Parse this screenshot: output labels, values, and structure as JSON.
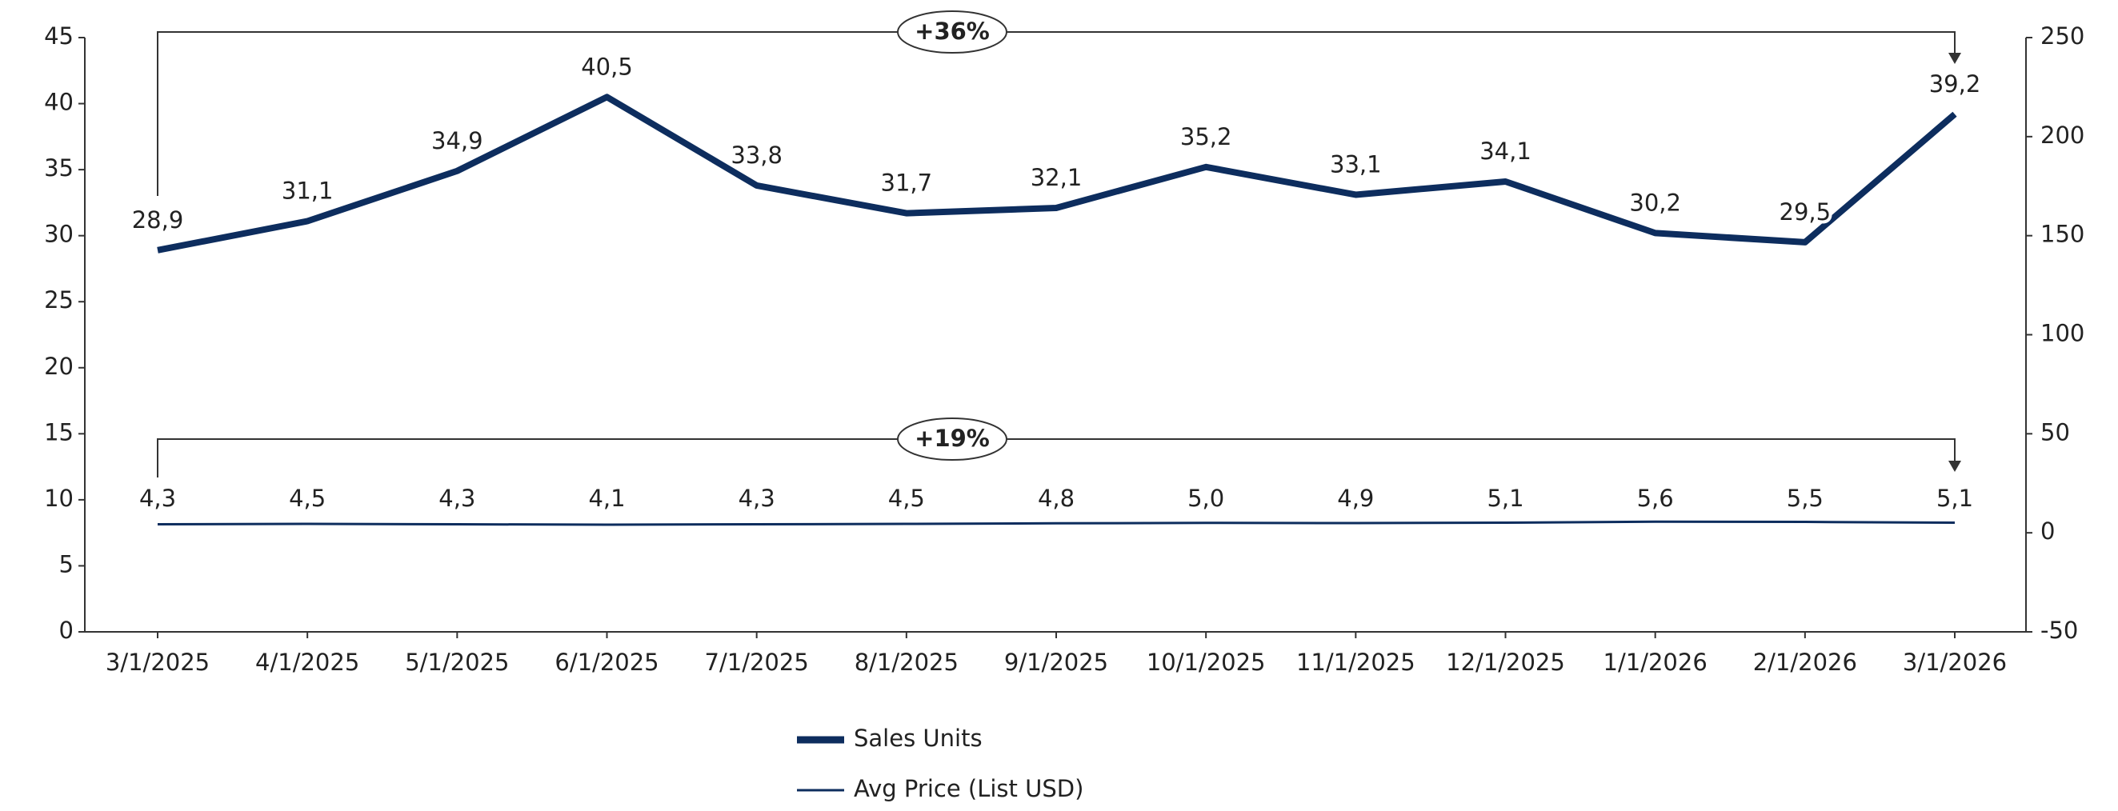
{
  "chart_data": {
    "type": "line",
    "categories": [
      "3/1/2025",
      "4/1/2025",
      "5/1/2025",
      "6/1/2025",
      "7/1/2025",
      "8/1/2025",
      "9/1/2025",
      "10/1/2025",
      "11/1/2025",
      "12/1/2025",
      "1/1/2026",
      "2/1/2026",
      "3/1/2026"
    ],
    "series": [
      {
        "name": "Sales Units",
        "color": "#0d2d5e",
        "label_color": "#222222",
        "values": [
          28.9,
          31.1,
          34.9,
          40.5,
          33.8,
          31.7,
          32.1,
          35.2,
          33.1,
          34.1,
          30.2,
          29.5,
          39.2
        ],
        "value_labels": [
          "28,9",
          "31,1",
          "34,9",
          "40,5",
          "33,8",
          "31,7",
          "32,1",
          "35,2",
          "33,1",
          "34,1",
          "30,2",
          "29,5",
          "39,2"
        ]
      },
      {
        "name": "Avg Price (List USD)",
        "color": "#0d2d5e",
        "label_color": "#2a7f7f",
        "axis": "y2",
        "values": [
          4.3,
          4.5,
          4.3,
          4.1,
          4.3,
          4.5,
          4.8,
          5.0,
          4.9,
          5.1,
          5.6,
          5.5,
          5.1
        ],
        "value_labels": [
          "4,3",
          "4,5",
          "4,3",
          "4,1",
          "4,3",
          "4,5",
          "4,8",
          "5,0",
          "4,9",
          "5,1",
          "5,6",
          "5,5",
          "5,1"
        ]
      }
    ],
    "ylim": [
      0,
      45
    ],
    "yticks": [
      0,
      5,
      10,
      15,
      20,
      25,
      30,
      35,
      40,
      45
    ],
    "y2lim": [
      -50,
      250
    ],
    "y2ticks": [
      -50,
      0,
      50,
      100,
      150,
      200,
      250
    ],
    "annotations": [
      "+36%",
      "+19%"
    ],
    "legend": "bottom"
  }
}
